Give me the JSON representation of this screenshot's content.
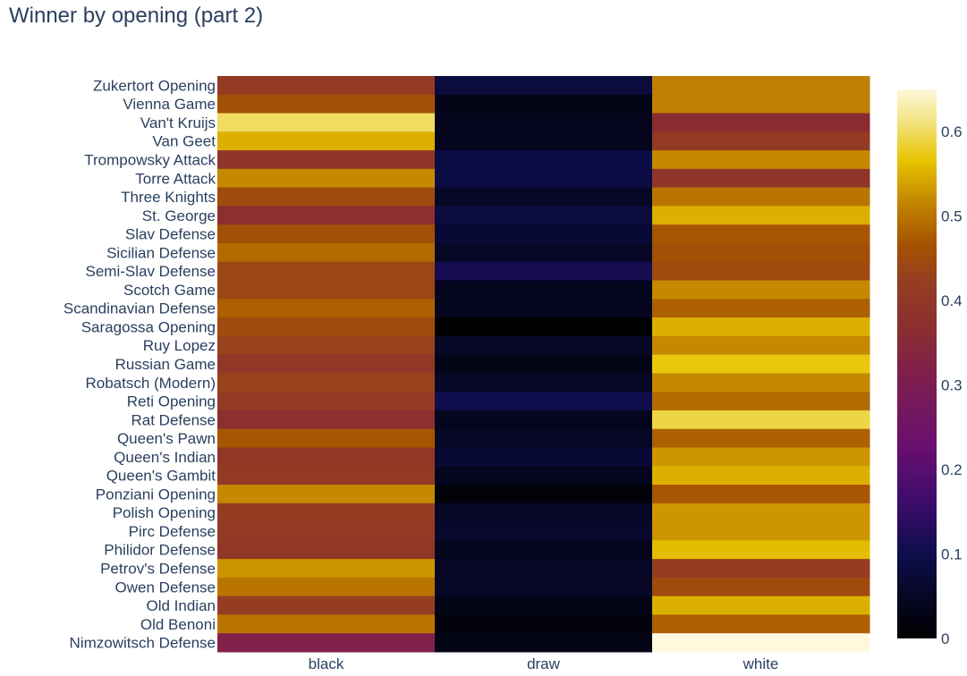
{
  "chart_data": {
    "type": "heatmap",
    "title": "Winner by opening (part 2)",
    "x_categories": [
      "black",
      "draw",
      "white"
    ],
    "y_categories": [
      "Zukertort Opening",
      "Vienna Game",
      "Van't Kruijs",
      "Van Geet",
      "Trompowsky Attack",
      "Torre Attack",
      "Three Knights",
      "St. George",
      "Slav Defense",
      "Sicilian Defense",
      "Semi-Slav Defense",
      "Scotch Game",
      "Scandinavian Defense",
      "Saragossa Opening",
      "Ruy Lopez",
      "Russian Game",
      "Robatsch (Modern)",
      "Reti Opening",
      "Rat Defense",
      "Queen's Pawn",
      "Queen's Indian",
      "Queen's Gambit",
      "Ponziani Opening",
      "Polish Opening",
      "Pirc Defense",
      "Philidor Defense",
      "Petrov's Defense",
      "Owen Defense",
      "Old Indian",
      "Old Benoni",
      "Nimzowitsch Defense"
    ],
    "z": [
      [
        0.41,
        0.08,
        0.51
      ],
      [
        0.46,
        0.03,
        0.51
      ],
      [
        0.6,
        0.04,
        0.36
      ],
      [
        0.55,
        0.04,
        0.41
      ],
      [
        0.39,
        0.09,
        0.52
      ],
      [
        0.52,
        0.09,
        0.39
      ],
      [
        0.45,
        0.05,
        0.5
      ],
      [
        0.37,
        0.08,
        0.55
      ],
      [
        0.46,
        0.07,
        0.47
      ],
      [
        0.49,
        0.05,
        0.46
      ],
      [
        0.44,
        0.11,
        0.45
      ],
      [
        0.44,
        0.04,
        0.52
      ],
      [
        0.48,
        0.04,
        0.48
      ],
      [
        0.45,
        0.0,
        0.55
      ],
      [
        0.43,
        0.05,
        0.52
      ],
      [
        0.4,
        0.03,
        0.57
      ],
      [
        0.43,
        0.05,
        0.52
      ],
      [
        0.41,
        0.1,
        0.49
      ],
      [
        0.37,
        0.04,
        0.59
      ],
      [
        0.47,
        0.05,
        0.48
      ],
      [
        0.4,
        0.07,
        0.53
      ],
      [
        0.41,
        0.04,
        0.55
      ],
      [
        0.52,
        0.01,
        0.47
      ],
      [
        0.42,
        0.05,
        0.53
      ],
      [
        0.41,
        0.06,
        0.53
      ],
      [
        0.4,
        0.04,
        0.56
      ],
      [
        0.53,
        0.05,
        0.42
      ],
      [
        0.5,
        0.05,
        0.45
      ],
      [
        0.42,
        0.03,
        0.55
      ],
      [
        0.5,
        0.02,
        0.48
      ],
      [
        0.32,
        0.03,
        0.65
      ]
    ],
    "zmin": 0,
    "zmax": 0.65,
    "colorscale": [
      [
        0.0,
        "#000000"
      ],
      [
        0.15,
        "#0d0d4a"
      ],
      [
        0.25,
        "#3d0c6b"
      ],
      [
        0.35,
        "#6a0f70"
      ],
      [
        0.48,
        "#7e1f4d"
      ],
      [
        0.56,
        "#8a2d30"
      ],
      [
        0.65,
        "#953e22"
      ],
      [
        0.72,
        "#a55400"
      ],
      [
        0.8,
        "#c58900"
      ],
      [
        0.87,
        "#e8c400"
      ],
      [
        0.93,
        "#f0df6e"
      ],
      [
        1.0,
        "#fff8dc"
      ]
    ],
    "colorbar": {
      "tickvals": [
        0,
        0.1,
        0.2,
        0.3,
        0.4,
        0.5,
        0.6
      ],
      "ticktext": [
        "0",
        "0.1",
        "0.2",
        "0.3",
        "0.4",
        "0.5",
        "0.6"
      ]
    }
  }
}
